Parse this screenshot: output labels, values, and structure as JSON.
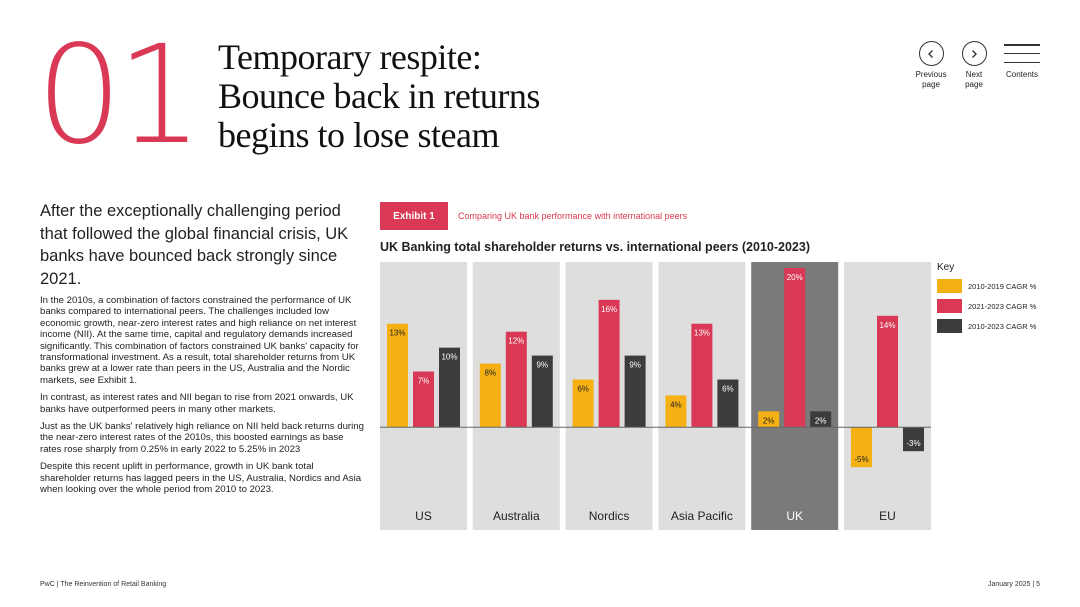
{
  "header": {
    "section_number": "01",
    "title_lines": [
      "Temporary respite:",
      "Bounce back in returns",
      "begins to lose steam"
    ]
  },
  "nav": {
    "previous": [
      "Previous",
      "page"
    ],
    "next": [
      "Next",
      "page"
    ],
    "contents": "Contents",
    "icons": {
      "previous": "chevron-left-icon",
      "next": "chevron-right-icon",
      "contents": "menu-icon"
    }
  },
  "intro": "After the exceptionally challenging period that followed the global financial crisis, UK banks have bounced back strongly since 2021.",
  "body_paragraphs": [
    "In the 2010s, a combination of factors constrained the performance of UK banks compared to international peers. The challenges included low economic growth, near-zero interest rates and high reliance on net interest income (NII). At the same time, capital and regulatory demands increased significantly. This combination of factors constrained UK banks' capacity for transformational investment. As a result, total shareholder returns from UK banks grew at a lower rate than peers in the US, Australia and the Nordic markets, see Exhibit 1.",
    "In contrast, as interest rates and NII began to rise from 2021 onwards, UK banks have outperformed peers in many other markets.",
    "Just as the UK banks' relatively high reliance on NII held back returns during the near-zero interest rates of the 2010s, this boosted earnings as base rates rose sharply from 0.25% in early 2022 to 5.25% in 2023",
    "Despite this recent uplift in performance, growth in UK bank total shareholder returns has lagged peers in the US, Australia, Nordics and Asia when looking over the whole period from 2010 to 2023."
  ],
  "exhibit": {
    "badge": "Exhibit 1",
    "caption": "Comparing UK bank performance with international peers"
  },
  "chart_data": {
    "type": "bar",
    "title": "UK Banking total shareholder returns vs. international peers (2010-2023)",
    "categories": [
      "US",
      "Australia",
      "Nordics",
      "Asia Pacific",
      "UK",
      "EU"
    ],
    "highlight_category": "UK",
    "series": [
      {
        "name": "2010-2019 CAGR %",
        "color": "#f5b014",
        "values": [
          13,
          8,
          6,
          4,
          2,
          -5
        ],
        "labels": [
          "13%",
          "8%",
          "6%",
          "4%",
          "2%",
          "-5%"
        ]
      },
      {
        "name": "2021-2023 CAGR %",
        "color": "#d93954",
        "values": [
          7,
          12,
          16,
          13,
          20,
          14
        ],
        "labels": [
          "7%",
          "12%",
          "16%",
          "13%",
          "20%",
          "14%"
        ]
      },
      {
        "name": "2010-2023 CAGR %",
        "color": "#3d3b3c",
        "values": [
          10,
          9,
          9,
          6,
          2,
          -3
        ],
        "labels": [
          "10%",
          "9%",
          "9%",
          "6%",
          "2%",
          "-3%"
        ]
      }
    ],
    "ylim": [
      -8.5,
      20.5
    ],
    "legend_title": "Key",
    "legend_position": "right",
    "panel_color": "#dedede",
    "highlight_panel_color": "#7a7a7a"
  },
  "footer": {
    "left": "PwC | The Reinvention of Retail Banking",
    "right": "January 2025 | 5"
  }
}
